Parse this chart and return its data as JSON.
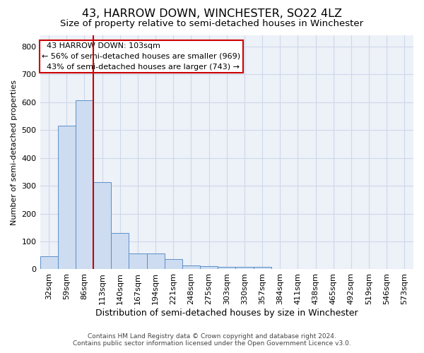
{
  "title": "43, HARROW DOWN, WINCHESTER, SO22 4LZ",
  "subtitle": "Size of property relative to semi-detached houses in Winchester",
  "xlabel": "Distribution of semi-detached houses by size in Winchester",
  "ylabel": "Number of semi-detached properties",
  "footnote1": "Contains HM Land Registry data © Crown copyright and database right 2024.",
  "footnote2": "Contains public sector information licensed under the Open Government Licence v3.0.",
  "annotation_line1": "  43 HARROW DOWN: 103sqm",
  "annotation_line2": "← 56% of semi-detached houses are smaller (969)",
  "annotation_line3": "  43% of semi-detached houses are larger (743) →",
  "bar_color": "#cddcf0",
  "bar_edge_color": "#5b8fc9",
  "vline_color": "#cc0000",
  "vline_x": 2.5,
  "categories": [
    "32sqm",
    "59sqm",
    "86sqm",
    "113sqm",
    "140sqm",
    "167sqm",
    "194sqm",
    "221sqm",
    "248sqm",
    "275sqm",
    "303sqm",
    "330sqm",
    "357sqm",
    "384sqm",
    "411sqm",
    "438sqm",
    "465sqm",
    "492sqm",
    "519sqm",
    "546sqm",
    "573sqm"
  ],
  "values": [
    47,
    516,
    607,
    312,
    130,
    57,
    57,
    37,
    14,
    12,
    8,
    8,
    8,
    0,
    0,
    0,
    0,
    0,
    0,
    0,
    0
  ],
  "ylim": [
    0,
    840
  ],
  "yticks": [
    0,
    100,
    200,
    300,
    400,
    500,
    600,
    700,
    800
  ],
  "grid_color": "#cdd8ea",
  "background_color": "#edf1f8",
  "fig_background": "#ffffff",
  "title_fontsize": 11.5,
  "subtitle_fontsize": 9.5,
  "annotation_fontsize": 8.0,
  "xlabel_fontsize": 9,
  "ylabel_fontsize": 8,
  "footnote_fontsize": 6.5,
  "tick_fontsize": 8
}
